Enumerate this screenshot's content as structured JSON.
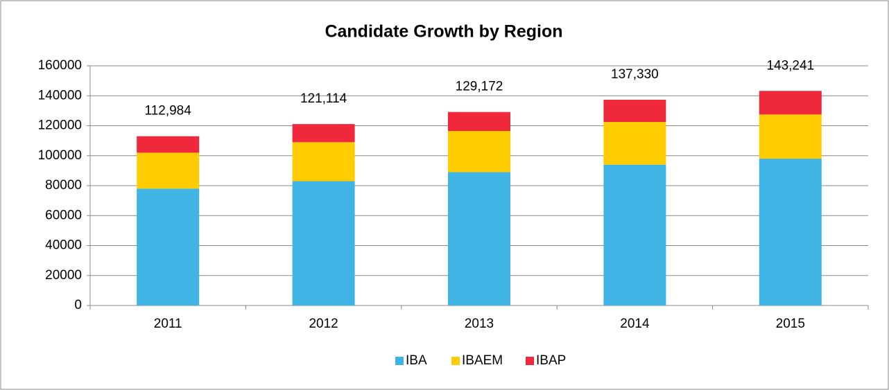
{
  "chart_data": {
    "type": "stacked_bar",
    "title": "Candidate Growth by Region",
    "categories": [
      "2011",
      "2012",
      "2013",
      "2014",
      "2015"
    ],
    "series": [
      {
        "name": "IBA",
        "color": "#41b4e6",
        "values": [
          78000,
          83000,
          89000,
          94000,
          98000
        ]
      },
      {
        "name": "IBAEM",
        "color": "#ffcc00",
        "values": [
          24000,
          26000,
          27500,
          28500,
          29500
        ]
      },
      {
        "name": "IBAP",
        "color": "#f0283c",
        "values": [
          10984,
          12114,
          12672,
          14830,
          15741
        ]
      }
    ],
    "totals": [
      112984,
      121114,
      129172,
      137330,
      143241
    ],
    "total_labels": [
      "112,984",
      "121,114",
      "129,172",
      "137,330",
      "143,241"
    ],
    "ylim": [
      0,
      160000
    ],
    "yticks": [
      0,
      20000,
      40000,
      60000,
      80000,
      100000,
      120000,
      140000,
      160000
    ],
    "grid": true,
    "legend": "bottom"
  }
}
